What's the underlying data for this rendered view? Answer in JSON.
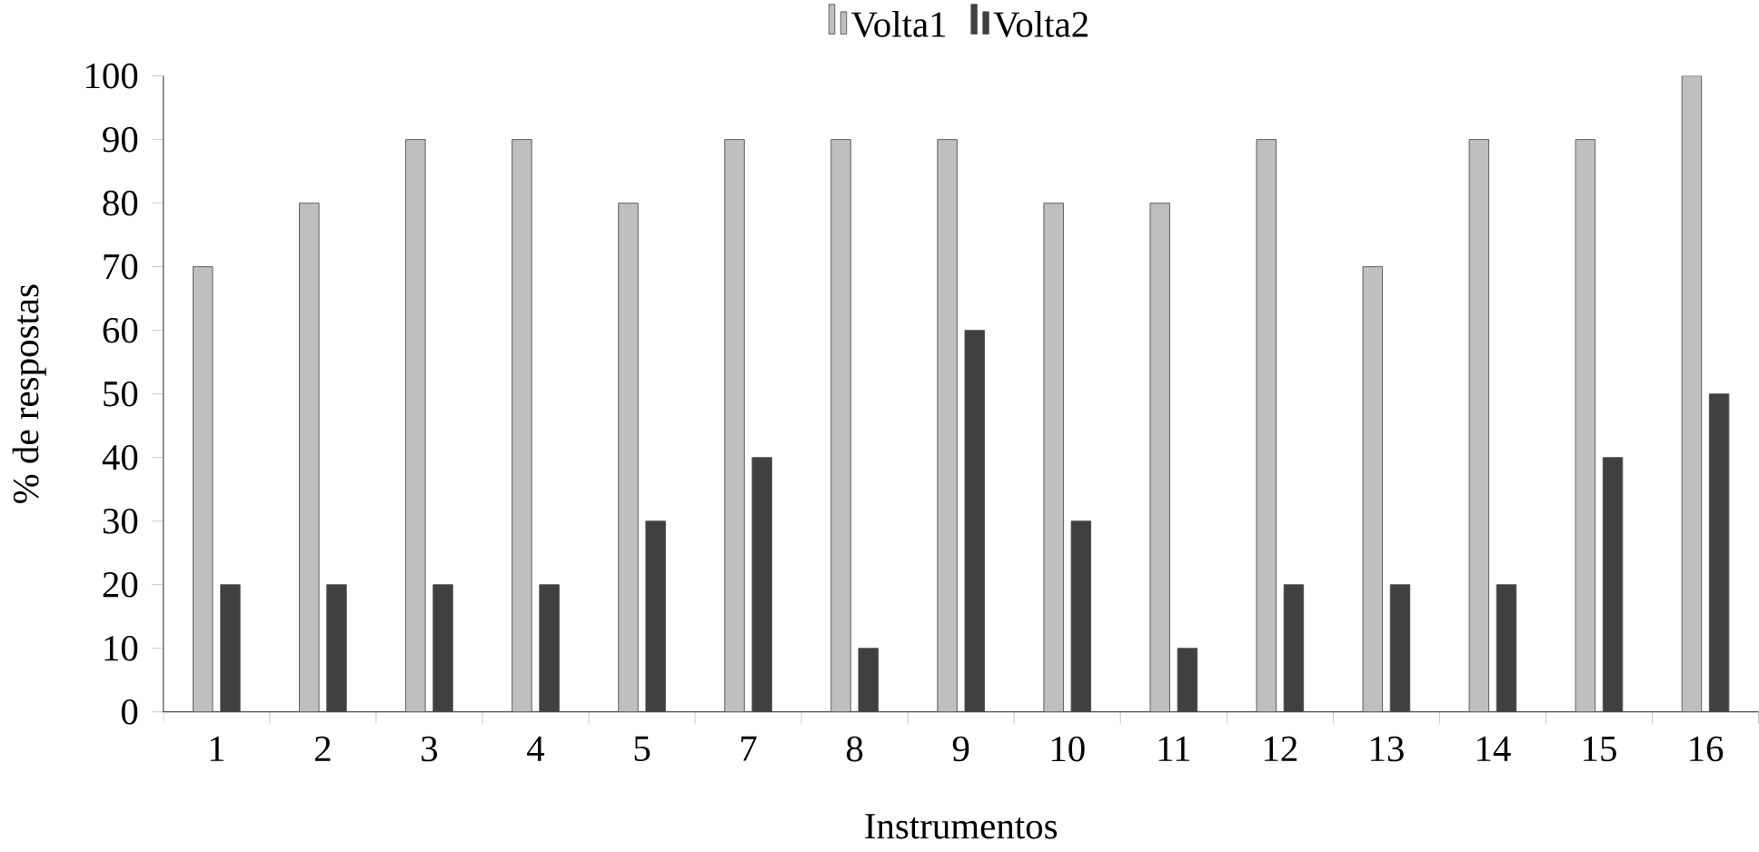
{
  "chart_data": {
    "type": "bar",
    "xlabel": "Instrumentos",
    "ylabel": "% de respostas",
    "categories": [
      "1",
      "2",
      "3",
      "4",
      "5",
      "7",
      "8",
      "9",
      "10",
      "11",
      "12",
      "13",
      "14",
      "15",
      "16"
    ],
    "series": [
      {
        "name": "Volta1",
        "color": "#bfbfbf",
        "values": [
          70,
          80,
          90,
          90,
          80,
          90,
          90,
          90,
          80,
          80,
          90,
          70,
          90,
          90,
          100
        ]
      },
      {
        "name": "Volta2",
        "color": "#404040",
        "values": [
          20,
          20,
          20,
          20,
          30,
          40,
          10,
          60,
          30,
          10,
          20,
          20,
          20,
          40,
          50
        ]
      }
    ],
    "ylim": [
      0,
      100
    ],
    "yticks": [
      0,
      10,
      20,
      30,
      40,
      50,
      60,
      70,
      80,
      90,
      100
    ],
    "legend": "top",
    "grid": false
  }
}
